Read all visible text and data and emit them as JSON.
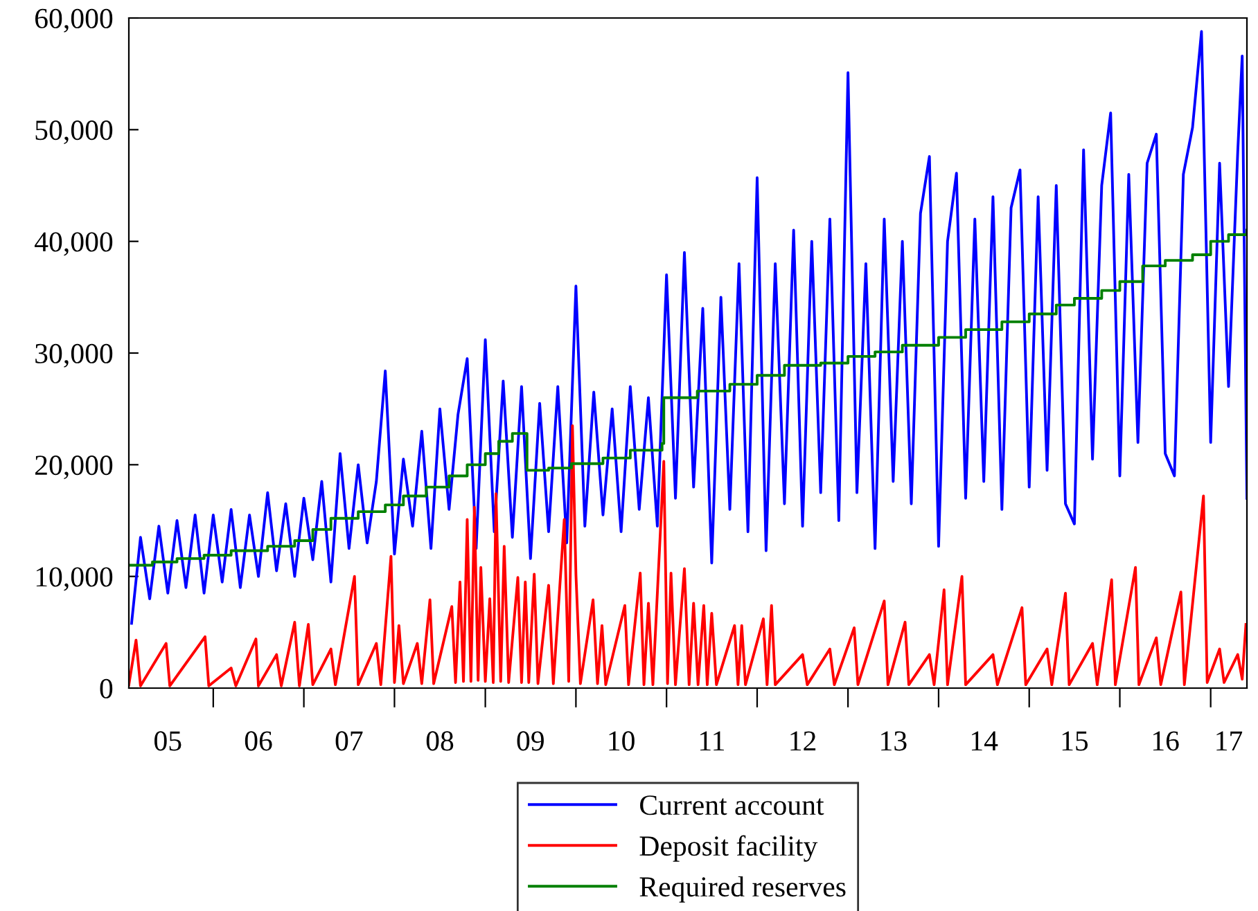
{
  "chart_data": {
    "type": "line",
    "x": [
      "2005-02-06",
      "2005-03-14",
      "2005-04-20",
      "2005-05-27",
      "2005-07-02",
      "2005-08-08",
      "2005-09-13",
      "2005-10-20",
      "2005-11-25",
      "2006-01-01",
      "2006-02-06",
      "2006-03-14",
      "2006-04-20",
      "2006-05-27",
      "2006-07-02",
      "2006-08-08",
      "2006-09-13",
      "2006-10-20",
      "2006-11-25",
      "2007-01-01",
      "2007-02-06",
      "2007-03-14",
      "2007-04-20",
      "2007-05-27",
      "2007-07-02",
      "2007-08-08",
      "2007-09-13",
      "2007-10-20",
      "2007-11-25",
      "2008-01-01",
      "2008-02-06",
      "2008-03-14",
      "2008-04-20",
      "2008-05-27",
      "2008-07-02",
      "2008-08-08",
      "2008-09-13",
      "2008-10-20",
      "2008-11-25",
      "2009-01-01",
      "2009-02-06",
      "2009-03-14",
      "2009-04-20",
      "2009-05-27",
      "2009-07-02",
      "2009-08-08",
      "2009-09-13",
      "2009-10-20",
      "2009-11-25",
      "2010-01-01",
      "2010-02-06",
      "2010-03-14",
      "2010-04-20",
      "2010-05-27",
      "2010-07-02",
      "2010-08-08",
      "2010-09-13",
      "2010-10-20",
      "2010-11-25",
      "2011-01-01",
      "2011-02-06",
      "2011-03-14",
      "2011-04-20",
      "2011-05-27",
      "2011-07-02",
      "2011-08-08",
      "2011-09-13",
      "2011-10-20",
      "2011-11-25",
      "2012-01-01",
      "2012-02-06",
      "2012-03-14",
      "2012-04-20",
      "2012-05-27",
      "2012-07-02",
      "2012-08-08",
      "2012-09-13",
      "2012-10-20",
      "2012-11-25",
      "2013-01-01",
      "2013-02-06",
      "2013-03-14",
      "2013-04-20",
      "2013-05-27",
      "2013-07-02",
      "2013-08-08",
      "2013-09-13",
      "2013-10-20",
      "2013-11-25",
      "2014-01-01",
      "2014-02-06",
      "2014-03-14",
      "2014-04-20",
      "2014-05-27",
      "2014-07-02",
      "2014-08-08",
      "2014-09-13",
      "2014-10-20",
      "2014-11-25",
      "2015-01-01",
      "2015-02-06",
      "2015-03-14",
      "2015-04-20",
      "2015-05-27",
      "2015-07-02",
      "2015-08-08",
      "2015-09-13",
      "2015-10-20",
      "2015-11-25",
      "2016-01-01",
      "2016-02-06",
      "2016-03-14",
      "2016-04-20",
      "2016-05-27",
      "2016-07-02",
      "2016-08-08",
      "2016-09-13",
      "2016-10-20",
      "2016-11-25",
      "2017-01-01",
      "2017-02-06",
      "2017-03-14",
      "2017-04-20",
      "2017-05-08",
      "2017-05-27"
    ],
    "series": [
      {
        "name": "Current account",
        "color": "#0000ff",
        "values": [
          5800,
          13500,
          8000,
          14500,
          8500,
          15000,
          9000,
          15500,
          8500,
          15500,
          9500,
          16000,
          9000,
          15500,
          10000,
          17500,
          10500,
          16500,
          10000,
          17000,
          11500,
          18500,
          9500,
          21000,
          12500,
          20000,
          13000,
          18500,
          28400,
          12000,
          20500,
          14500,
          23000,
          12500,
          25000,
          16000,
          24500,
          29500,
          12500,
          31200,
          14000,
          27500,
          13500,
          27000,
          11600,
          25500,
          14000,
          27000,
          13000,
          36000,
          14500,
          26500,
          15500,
          25000,
          14000,
          27000,
          16000,
          26000,
          14500,
          37000,
          17000,
          39000,
          18000,
          34000,
          11200,
          35000,
          16000,
          38000,
          14000,
          45700,
          12300,
          38000,
          16500,
          41000,
          14500,
          40000,
          17500,
          42000,
          15000,
          55100,
          17500,
          38000,
          12500,
          42000,
          18500,
          40000,
          16500,
          42500,
          47600,
          12700,
          40000,
          46100,
          17000,
          42000,
          18500,
          44000,
          16000,
          43000,
          46400,
          18000,
          44000,
          19500,
          45000,
          16500,
          14700,
          48200,
          20500,
          45000,
          51500,
          19000,
          46000,
          22000,
          47000,
          49600,
          21000,
          19000,
          46000,
          50200,
          58800,
          22000,
          47000,
          27000,
          48000,
          56600,
          17000
        ]
      },
      {
        "name": "Deposit facility",
        "color": "#ff0000",
        "x": [
          "2005-01-26",
          "2005-02-24",
          "2005-03-14",
          "2005-06-25",
          "2005-07-10",
          "2005-11-29",
          "2005-12-14",
          "2006-03-14",
          "2006-04-02",
          "2006-06-22",
          "2006-07-02",
          "2006-09-13",
          "2006-10-02",
          "2006-11-25",
          "2006-12-14",
          "2007-01-19",
          "2007-02-06",
          "2007-04-20",
          "2007-05-08",
          "2007-07-24",
          "2007-08-08",
          "2007-10-20",
          "2007-11-07",
          "2007-12-18",
          "2008-01-01",
          "2008-01-19",
          "2008-02-06",
          "2008-04-02",
          "2008-04-20",
          "2008-05-23",
          "2008-06-07",
          "2008-08-19",
          "2008-09-03",
          "2008-09-21",
          "2008-10-05",
          "2008-10-20",
          "2008-11-04",
          "2008-11-18",
          "2008-12-03",
          "2008-12-14",
          "2009-01-01",
          "2009-01-19",
          "2009-02-02",
          "2009-02-13",
          "2009-03-04",
          "2009-03-18",
          "2009-04-05",
          "2009-05-12",
          "2009-05-27",
          "2009-06-11",
          "2009-06-25",
          "2009-07-17",
          "2009-08-01",
          "2009-09-13",
          "2009-10-02",
          "2009-11-15",
          "2009-12-03",
          "2009-12-18",
          "2010-01-01",
          "2010-01-19",
          "2010-03-11",
          "2010-03-29",
          "2010-04-16",
          "2010-05-01",
          "2010-07-17",
          "2010-08-01",
          "2010-09-17",
          "2010-10-02",
          "2010-10-20",
          "2010-11-07",
          "2010-12-21",
          "2011-01-05",
          "2011-01-19",
          "2011-02-06",
          "2011-03-14",
          "2011-04-02",
          "2011-04-20",
          "2011-05-08",
          "2011-05-31",
          "2011-06-14",
          "2011-07-02",
          "2011-07-21",
          "2011-10-02",
          "2011-10-16",
          "2011-10-31",
          "2011-11-15",
          "2012-01-26",
          "2012-02-10",
          "2012-02-28",
          "2012-03-14",
          "2012-07-02",
          "2012-07-21",
          "2012-10-20",
          "2012-11-07",
          "2013-01-26",
          "2013-02-10",
          "2013-05-27",
          "2013-06-11",
          "2013-08-19",
          "2013-09-03",
          "2013-11-25",
          "2013-12-14",
          "2014-01-23",
          "2014-02-06",
          "2014-04-05",
          "2014-04-20",
          "2014-08-08",
          "2014-08-26",
          "2014-12-03",
          "2014-12-18",
          "2015-03-14",
          "2015-04-02",
          "2015-05-27",
          "2015-06-11",
          "2015-09-13",
          "2015-10-02",
          "2015-11-29",
          "2015-12-14",
          "2016-03-04",
          "2016-03-18",
          "2016-05-27",
          "2016-06-14",
          "2016-09-03",
          "2016-09-17",
          "2016-12-03",
          "2016-12-18",
          "2017-02-06",
          "2017-02-24",
          "2017-04-20",
          "2017-05-08",
          "2017-05-23"
        ],
        "values": [
          300,
          4300,
          200,
          4000,
          200,
          4600,
          200,
          1800,
          200,
          4400,
          200,
          3000,
          200,
          5900,
          200,
          5700,
          300,
          3500,
          300,
          10000,
          300,
          4000,
          300,
          11800,
          500,
          5600,
          400,
          4000,
          400,
          7900,
          400,
          7300,
          500,
          9500,
          600,
          15100,
          600,
          16200,
          700,
          10800,
          600,
          8000,
          500,
          17400,
          600,
          12700,
          500,
          9900,
          500,
          9500,
          500,
          10200,
          400,
          9200,
          400,
          15100,
          600,
          23500,
          10200,
          400,
          7900,
          400,
          5600,
          300,
          7400,
          300,
          10300,
          300,
          7600,
          300,
          20300,
          400,
          10300,
          300,
          10700,
          300,
          7600,
          300,
          7400,
          300,
          6700,
          300,
          5600,
          300,
          5600,
          300,
          6200,
          300,
          7400,
          300,
          3000,
          300,
          3500,
          300,
          5400,
          300,
          7800,
          300,
          5900,
          300,
          3000,
          300,
          8800,
          300,
          10000,
          300,
          3000,
          300,
          7200,
          300,
          3500,
          300,
          8500,
          300,
          4000,
          300,
          9700,
          300,
          10800,
          300,
          4500,
          300,
          8600,
          300,
          17200,
          500,
          3500,
          500,
          3000,
          800,
          5700
        ]
      },
      {
        "name": "Required reserves",
        "color": "#008000",
        "type": "step",
        "x": [
          "2005-01-26",
          "2005-05-01",
          "2005-08-08",
          "2005-11-25",
          "2006-03-14",
          "2006-08-08",
          "2006-11-25",
          "2007-02-06",
          "2007-04-20",
          "2007-08-08",
          "2007-11-25",
          "2008-02-06",
          "2008-05-08",
          "2008-08-08",
          "2008-10-20",
          "2009-01-01",
          "2009-02-24",
          "2009-04-20",
          "2009-06-18",
          "2009-09-13",
          "2009-12-14",
          "2010-04-20",
          "2010-08-08",
          "2010-12-14",
          "2010-12-21",
          "2011-05-05",
          "2011-09-13",
          "2012-01-01",
          "2012-04-20",
          "2012-09-13",
          "2013-01-01",
          "2013-04-20",
          "2013-08-08",
          "2014-01-01",
          "2014-04-20",
          "2014-09-13",
          "2015-01-01",
          "2015-04-20",
          "2015-07-02",
          "2015-10-20",
          "2016-01-01",
          "2016-04-02",
          "2016-07-02",
          "2016-10-20",
          "2017-01-01",
          "2017-03-14",
          "2017-05-27"
        ],
        "values": [
          11000,
          11300,
          11600,
          11900,
          12300,
          12700,
          13200,
          14200,
          15200,
          15800,
          16400,
          17200,
          18000,
          19000,
          20000,
          21000,
          22100,
          22800,
          19500,
          19700,
          20100,
          20600,
          21300,
          21900,
          26000,
          26600,
          27200,
          28000,
          28900,
          29100,
          29700,
          30100,
          30700,
          31400,
          32100,
          32800,
          33500,
          34300,
          34900,
          35600,
          36400,
          37800,
          38300,
          38800,
          40000,
          40600,
          41000
        ]
      }
    ],
    "xlim": [
      "2005-01-26",
      "2017-05-27"
    ],
    "xticks": [
      {
        "value": "2006-01-01",
        "label": null
      },
      {
        "value": "2007-01-01",
        "label": null
      },
      {
        "value": "2008-01-01",
        "label": null
      },
      {
        "value": "2009-01-01",
        "label": null
      },
      {
        "value": "2010-01-01",
        "label": null
      },
      {
        "value": "2011-01-01",
        "label": null
      },
      {
        "value": "2012-01-01",
        "label": null
      },
      {
        "value": "2013-01-01",
        "label": null
      },
      {
        "value": "2014-01-01",
        "label": null
      },
      {
        "value": "2015-01-01",
        "label": null
      },
      {
        "value": "2016-01-01",
        "label": null
      },
      {
        "value": "2017-01-01",
        "label": null
      },
      {
        "value": "2005-07-02",
        "label": "05"
      },
      {
        "value": "2006-07-02",
        "label": "06"
      },
      {
        "value": "2007-07-02",
        "label": "07"
      },
      {
        "value": "2008-07-02",
        "label": "08"
      },
      {
        "value": "2009-07-02",
        "label": "09"
      },
      {
        "value": "2010-07-02",
        "label": "10"
      },
      {
        "value": "2011-07-02",
        "label": "11"
      },
      {
        "value": "2012-07-02",
        "label": "12"
      },
      {
        "value": "2013-07-02",
        "label": "13"
      },
      {
        "value": "2014-07-02",
        "label": "14"
      },
      {
        "value": "2015-07-02",
        "label": "15"
      },
      {
        "value": "2016-07-02",
        "label": "16"
      },
      {
        "value": "2017-03-14",
        "label": "17"
      }
    ],
    "ylim": [
      0,
      60000
    ],
    "yticks": [
      0,
      {
        "value": 10000,
        "label": "10,000"
      },
      {
        "value": 20000,
        "label": "20,000"
      },
      {
        "value": 30000,
        "label": "30,000"
      },
      {
        "value": 40000,
        "label": "40,000"
      },
      {
        "value": 50000,
        "label": "50,000"
      },
      {
        "value": 60000,
        "label": "60,000"
      }
    ],
    "grid": false,
    "legend": "bottom",
    "marker": "none",
    "line_style": "solid"
  }
}
